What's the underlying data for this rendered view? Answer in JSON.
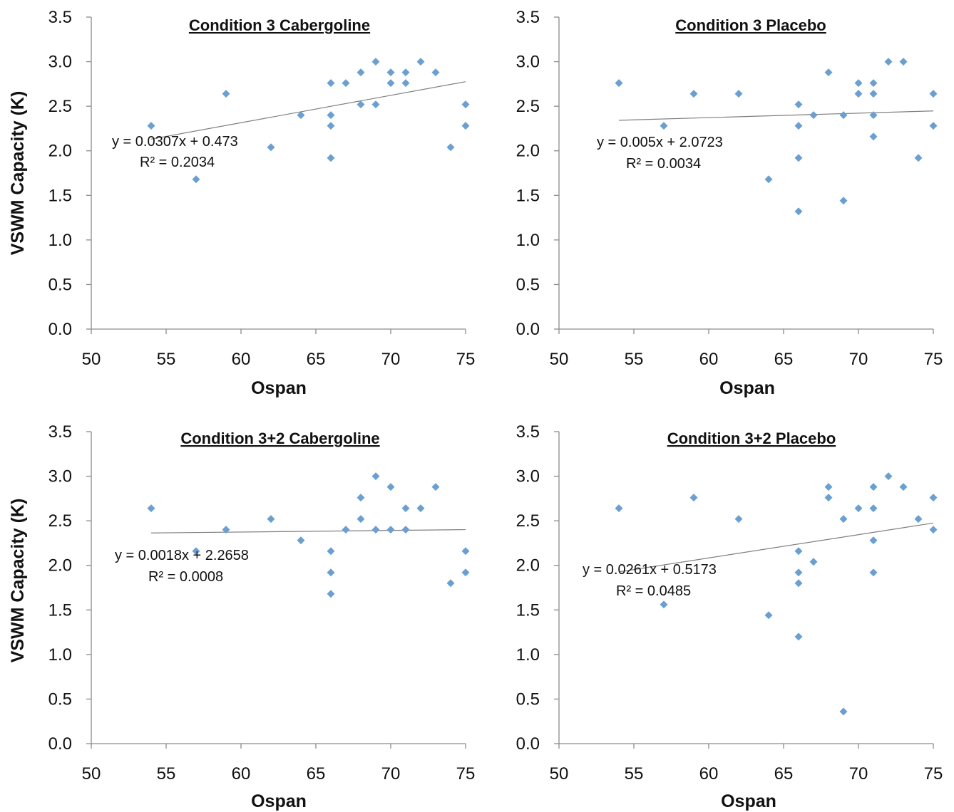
{
  "figure": {
    "ylabel": "VSWM Capacity (K)",
    "xlabel": "Ospan"
  },
  "colors": {
    "marker": "#6a9fd0",
    "trendline": "#7f7f7f",
    "axis": "#8c8c8c"
  },
  "chart_data": [
    {
      "type": "scatter",
      "title": "Condition 3 Cabergoline",
      "xlabel": "Ospan",
      "ylabel": "VSWM Capacity (K)",
      "xlim": [
        50,
        75
      ],
      "ylim": [
        0,
        3.5
      ],
      "xticks": [
        "50",
        "55",
        "60",
        "65",
        "70",
        "75"
      ],
      "yticks": [
        "0.0",
        "0.5",
        "1.0",
        "1.5",
        "2.0",
        "2.5",
        "3.0",
        "3.5"
      ],
      "grid": false,
      "points": [
        [
          54,
          2.28
        ],
        [
          57,
          1.68
        ],
        [
          59,
          2.64
        ],
        [
          62,
          2.04
        ],
        [
          64,
          2.4
        ],
        [
          66,
          2.76
        ],
        [
          66,
          2.4
        ],
        [
          66,
          2.28
        ],
        [
          66,
          1.92
        ],
        [
          67,
          2.76
        ],
        [
          68,
          2.88
        ],
        [
          68,
          2.52
        ],
        [
          69,
          3.0
        ],
        [
          69,
          2.52
        ],
        [
          70,
          2.88
        ],
        [
          70,
          2.76
        ],
        [
          71,
          2.88
        ],
        [
          71,
          2.76
        ],
        [
          72,
          3.0
        ],
        [
          73,
          2.88
        ],
        [
          74,
          2.04
        ],
        [
          75,
          2.52
        ],
        [
          75,
          2.28
        ]
      ],
      "trendline": {
        "slope": 0.0307,
        "intercept": 0.473,
        "x_range": [
          54,
          75
        ]
      },
      "equation": "y = 0.0307x + 0.473",
      "r_squared": "R² = 0.2034"
    },
    {
      "type": "scatter",
      "title": "Condition 3 Placebo",
      "xlabel": "Ospan",
      "ylabel": "",
      "xlim": [
        50,
        75
      ],
      "ylim": [
        0,
        3.5
      ],
      "xticks": [
        "50",
        "55",
        "60",
        "65",
        "70",
        "75"
      ],
      "yticks": [
        "0.0",
        "0.5",
        "1.0",
        "1.5",
        "2.0",
        "2.5",
        "3.0",
        "3.5"
      ],
      "grid": false,
      "points": [
        [
          54,
          2.76
        ],
        [
          57,
          2.28
        ],
        [
          59,
          2.64
        ],
        [
          62,
          2.64
        ],
        [
          64,
          1.68
        ],
        [
          66,
          2.52
        ],
        [
          66,
          2.28
        ],
        [
          66,
          1.92
        ],
        [
          66,
          1.32
        ],
        [
          67,
          2.4
        ],
        [
          68,
          2.88
        ],
        [
          69,
          2.4
        ],
        [
          69,
          1.44
        ],
        [
          70,
          2.76
        ],
        [
          70,
          2.64
        ],
        [
          71,
          2.76
        ],
        [
          71,
          2.64
        ],
        [
          71,
          2.4
        ],
        [
          71,
          2.16
        ],
        [
          72,
          3.0
        ],
        [
          73,
          3.0
        ],
        [
          74,
          1.92
        ],
        [
          75,
          2.64
        ],
        [
          75,
          2.28
        ]
      ],
      "trendline": {
        "slope": 0.005,
        "intercept": 2.0723,
        "x_range": [
          54,
          75
        ]
      },
      "equation": "y = 0.005x + 2.0723",
      "r_squared": "R² = 0.0034"
    },
    {
      "type": "scatter",
      "title": "Condition 3+2 Cabergoline",
      "xlabel": "Ospan",
      "ylabel": "VSWM Capacity (K)",
      "xlim": [
        50,
        75
      ],
      "ylim": [
        0,
        3.5
      ],
      "xticks": [
        "50",
        "55",
        "60",
        "65",
        "70",
        "75"
      ],
      "yticks": [
        "0.0",
        "0.5",
        "1.0",
        "1.5",
        "2.0",
        "2.5",
        "3.0",
        "3.5"
      ],
      "grid": false,
      "points": [
        [
          54,
          2.64
        ],
        [
          57,
          2.16
        ],
        [
          59,
          2.4
        ],
        [
          62,
          2.52
        ],
        [
          64,
          2.28
        ],
        [
          66,
          2.16
        ],
        [
          66,
          1.92
        ],
        [
          66,
          1.68
        ],
        [
          67,
          2.4
        ],
        [
          68,
          2.76
        ],
        [
          68,
          2.52
        ],
        [
          69,
          3.0
        ],
        [
          69,
          2.4
        ],
        [
          70,
          2.88
        ],
        [
          70,
          2.4
        ],
        [
          71,
          2.64
        ],
        [
          71,
          2.4
        ],
        [
          72,
          2.64
        ],
        [
          73,
          2.88
        ],
        [
          74,
          1.8
        ],
        [
          75,
          2.16
        ],
        [
          75,
          1.92
        ]
      ],
      "trendline": {
        "slope": 0.0018,
        "intercept": 2.2658,
        "x_range": [
          54,
          75
        ]
      },
      "equation": "y = 0.0018x + 2.2658",
      "r_squared": "R² = 0.0008"
    },
    {
      "type": "scatter",
      "title": "Condition 3+2 Placebo",
      "xlabel": "Ospan",
      "ylabel": "",
      "xlim": [
        50,
        75
      ],
      "ylim": [
        0,
        3.5
      ],
      "xticks": [
        "50",
        "55",
        "60",
        "65",
        "70",
        "75"
      ],
      "yticks": [
        "0.0",
        "0.5",
        "1.0",
        "1.5",
        "2.0",
        "2.5",
        "3.0",
        "3.5"
      ],
      "grid": false,
      "points": [
        [
          54,
          2.64
        ],
        [
          57,
          1.56
        ],
        [
          59,
          2.76
        ],
        [
          62,
          2.52
        ],
        [
          64,
          1.44
        ],
        [
          66,
          2.16
        ],
        [
          66,
          1.92
        ],
        [
          66,
          1.8
        ],
        [
          66,
          1.2
        ],
        [
          67,
          2.04
        ],
        [
          68,
          2.88
        ],
        [
          68,
          2.76
        ],
        [
          69,
          2.52
        ],
        [
          69,
          0.36
        ],
        [
          70,
          2.64
        ],
        [
          71,
          2.88
        ],
        [
          71,
          2.64
        ],
        [
          71,
          2.28
        ],
        [
          71,
          1.92
        ],
        [
          72,
          3.0
        ],
        [
          73,
          2.88
        ],
        [
          74,
          2.52
        ],
        [
          75,
          2.76
        ],
        [
          75,
          2.4
        ]
      ],
      "trendline": {
        "slope": 0.0261,
        "intercept": 0.5173,
        "x_range": [
          54,
          75
        ]
      },
      "equation": "y = 0.0261x + 0.5173",
      "r_squared": "R² = 0.0485"
    }
  ]
}
